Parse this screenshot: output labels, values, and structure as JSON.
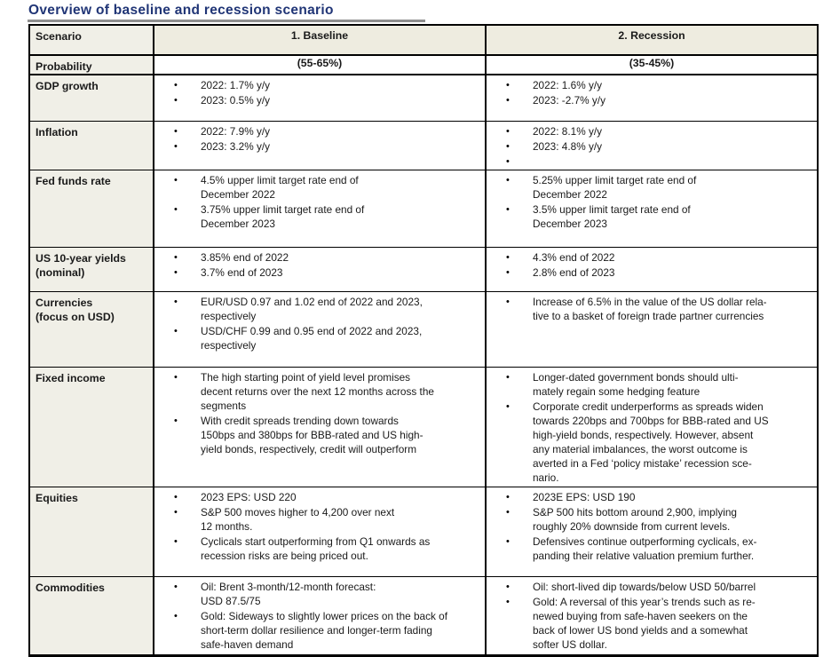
{
  "title": "Overview of baseline and recession scenario",
  "table": {
    "header": {
      "scenario": "Scenario",
      "baseline": "1. Baseline",
      "recession": "2. Recession"
    },
    "probability": {
      "label": "Probability",
      "baseline": "(55-65%)",
      "recession": "(35-45%)"
    },
    "rows": [
      {
        "label": "GDP growth",
        "baseline": [
          "2022: 1.7% y/y",
          "2023: 0.5% y/y"
        ],
        "recession": [
          "2022: 1.6% y/y",
          "2023: -2.7% y/y"
        ]
      },
      {
        "label": "Inflation",
        "baseline": [
          "2022: 7.9% y/y",
          "2023: 3.2% y/y"
        ],
        "recession": [
          "2022: 8.1% y/y",
          "2023: 4.8% y/y",
          ""
        ]
      },
      {
        "label": "Fed funds rate",
        "baseline": [
          "4.5% upper limit target rate end of\nDecember 2022",
          "3.75% upper limit target rate end of\nDecember 2023"
        ],
        "recession": [
          "5.25% upper limit target rate end of\nDecember 2022",
          "3.5% upper limit target rate end of\nDecember 2023"
        ]
      },
      {
        "label": "US 10-year yields\n(nominal)",
        "baseline": [
          "3.85% end of 2022",
          "3.7% end of 2023"
        ],
        "recession": [
          "4.3% end of 2022",
          "2.8% end of 2023"
        ]
      },
      {
        "label": "Currencies\n(focus on USD)",
        "baseline": [
          "EUR/USD 0.97 and 1.02 end of 2022 and 2023,\nrespectively",
          "USD/CHF 0.99 and 0.95 end of 2022 and 2023,\nrespectively"
        ],
        "recession": [
          "Increase of 6.5% in the value of the US dollar rela-\ntive to a basket of foreign trade partner currencies"
        ]
      },
      {
        "label": "Fixed income",
        "baseline": [
          "The high starting point of yield level promises\ndecent returns over the next 12 months across the\nsegments",
          "With credit spreads trending down towards\n150bps and 380bps for BBB-rated and US high-\nyield bonds, respectively, credit will outperform"
        ],
        "recession": [
          "Longer-dated government bonds should ulti-\nmately regain some hedging feature",
          "Corporate credit underperforms as spreads widen\ntowards 220bps and 700bps for BBB-rated and US\nhigh-yield bonds, respectively. However, absent\nany material imbalances, the worst outcome is\naverted in a Fed ‘policy mistake’ recession sce-\nnario."
        ]
      },
      {
        "label": "Equities",
        "baseline": [
          "2023 EPS: USD 220",
          "S&P 500 moves higher to 4,200 over next\n12 months.",
          "Cyclicals start outperforming from Q1 onwards as\nrecession risks are being priced out."
        ],
        "recession": [
          "2023E EPS: USD 190",
          "S&P 500 hits bottom around 2,900, implying\nroughly 20% downside from current levels.",
          "Defensives continue outperforming cyclicals, ex-\npanding their relative valuation premium further."
        ]
      },
      {
        "label": "Commodities",
        "baseline": [
          "Oil: Brent 3-month/12-month forecast:\nUSD 87.5/75",
          "Gold: Sideways to slightly lower prices on the back of\nshort-term dollar resilience and longer-term fading\nsafe-haven demand"
        ],
        "recession": [
          "Oil: short-lived dip towards/below USD 50/barrel",
          "Gold: A reversal of this year’s trends such as re-\nnewed buying from safe-haven seekers on the\nback of lower US bond yields and a somewhat\nsofter US dollar."
        ]
      }
    ]
  },
  "colors": {
    "title": "#203576",
    "header_bg": "#eeece0",
    "label_bg": "#f0efe7",
    "border": "#000000",
    "title_underline": "#8f8f8f"
  }
}
